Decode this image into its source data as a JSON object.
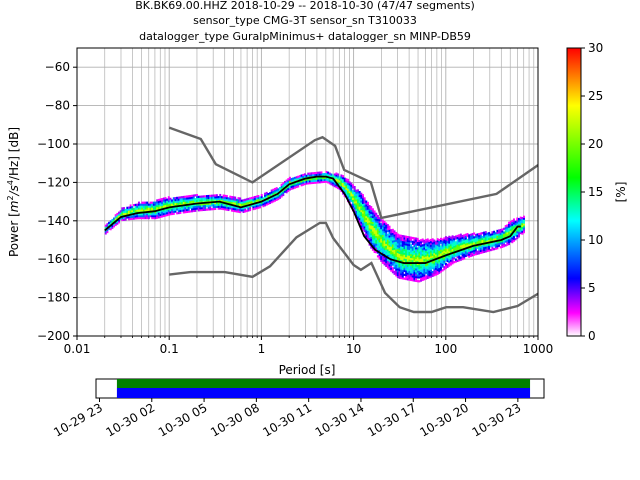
{
  "title_lines": [
    "BK.BK69.00.HHZ   2018-10-29 -- 2018-10-30  (47/47 segments)",
    "sensor_type CMG-3T sensor_sn T310033",
    "datalogger_type GuralpMinimus+ datalogger_sn MINP-DB59"
  ],
  "chart_data": {
    "type": "heatmap",
    "xlabel": "Period [s]",
    "ylabel_parts": {
      "prefix": "Power [",
      "unit_m": "m",
      "exp2": "2",
      "unit_s": "/s",
      "exp4": "4",
      "suffix": "/Hz] [dB]"
    },
    "xscale": "log",
    "xlim": [
      0.01,
      1000
    ],
    "ylim": [
      -200,
      -50
    ],
    "x_ticks": [
      0.01,
      0.1,
      1,
      10,
      100,
      1000
    ],
    "x_tick_labels": [
      "0.01",
      "0.1",
      "1",
      "10",
      "100",
      "1000"
    ],
    "y_ticks": [
      -200,
      -180,
      -160,
      -140,
      -120,
      -100,
      -80,
      -60
    ],
    "y_tick_labels": [
      "−200",
      "−180",
      "−160",
      "−140",
      "−120",
      "−100",
      "−80",
      "−60"
    ],
    "grid": true,
    "colorbar": {
      "label": "[%]",
      "range": [
        0,
        30
      ],
      "ticks": [
        0,
        5,
        10,
        15,
        20,
        25,
        30
      ],
      "tick_labels": [
        "0",
        "5",
        "10",
        "15",
        "20",
        "25",
        "30"
      ],
      "colors": [
        "#ffffff",
        "#ff00ff",
        "#0000ff",
        "#00ffff",
        "#00ff00",
        "#ffff00",
        "#ff0000"
      ]
    },
    "noise_model_high": [
      [
        0.1,
        -91.5
      ],
      [
        0.22,
        -97.4
      ],
      [
        0.32,
        -110.5
      ],
      [
        0.8,
        -120
      ],
      [
        3.8,
        -98
      ],
      [
        4.6,
        -96.5
      ],
      [
        6.3,
        -101
      ],
      [
        7.9,
        -113.5
      ],
      [
        15.4,
        -120
      ],
      [
        20,
        -138.5
      ],
      [
        354.8,
        -126
      ],
      [
        1000,
        -111
      ]
    ],
    "noise_model_low": [
      [
        0.1,
        -168
      ],
      [
        0.17,
        -166.7
      ],
      [
        0.4,
        -166.7
      ],
      [
        0.8,
        -169.2
      ],
      [
        1.24,
        -163.7
      ],
      [
        2.4,
        -148.6
      ],
      [
        4.3,
        -141.1
      ],
      [
        5.0,
        -141.1
      ],
      [
        6.0,
        -149
      ],
      [
        10,
        -163
      ],
      [
        12,
        -165.5
      ],
      [
        15.6,
        -162
      ],
      [
        21.9,
        -177.5
      ],
      [
        31.6,
        -185
      ],
      [
        45,
        -187.5
      ],
      [
        70,
        -187.5
      ],
      [
        101,
        -185
      ],
      [
        154,
        -185
      ],
      [
        328,
        -187.5
      ],
      [
        600,
        -184.4
      ],
      [
        1000,
        -178
      ]
    ],
    "median": [
      [
        0.02,
        -145
      ],
      [
        0.03,
        -138
      ],
      [
        0.045,
        -136
      ],
      [
        0.07,
        -135
      ],
      [
        0.1,
        -133
      ],
      [
        0.2,
        -131
      ],
      [
        0.35,
        -130
      ],
      [
        0.6,
        -133
      ],
      [
        1,
        -130
      ],
      [
        1.5,
        -126
      ],
      [
        2,
        -121
      ],
      [
        3,
        -118
      ],
      [
        4,
        -117
      ],
      [
        5,
        -117
      ],
      [
        6,
        -118
      ],
      [
        8,
        -126
      ],
      [
        10,
        -135
      ],
      [
        13,
        -148
      ],
      [
        17,
        -155
      ],
      [
        25,
        -160
      ],
      [
        35,
        -162
      ],
      [
        60,
        -162
      ],
      [
        100,
        -158
      ],
      [
        200,
        -153
      ],
      [
        400,
        -150
      ],
      [
        500,
        -148
      ],
      [
        600,
        -143
      ],
      [
        650,
        -143
      ]
    ],
    "cloud": [
      [
        0.02,
        -147,
        -143
      ],
      [
        0.025,
        -143,
        -138
      ],
      [
        0.03,
        -140,
        -134
      ],
      [
        0.045,
        -139,
        -131
      ],
      [
        0.07,
        -139,
        -130
      ],
      [
        0.1,
        -137,
        -128
      ],
      [
        0.2,
        -135,
        -127
      ],
      [
        0.35,
        -134,
        -127
      ],
      [
        0.6,
        -136,
        -129
      ],
      [
        1,
        -133,
        -127
      ],
      [
        1.5,
        -129,
        -123
      ],
      [
        2,
        -124,
        -118
      ],
      [
        3,
        -121,
        -116
      ],
      [
        5,
        -120,
        -115
      ],
      [
        7,
        -124,
        -116
      ],
      [
        9,
        -132,
        -120
      ],
      [
        12,
        -145,
        -126
      ],
      [
        15,
        -154,
        -133
      ],
      [
        20,
        -162,
        -140
      ],
      [
        30,
        -170,
        -148
      ],
      [
        50,
        -172,
        -150
      ],
      [
        80,
        -168,
        -150
      ],
      [
        120,
        -162,
        -148
      ],
      [
        200,
        -158,
        -147
      ],
      [
        400,
        -154,
        -145
      ],
      [
        500,
        -152,
        -140
      ],
      [
        700,
        -146,
        -138
      ]
    ],
    "time_axis": {
      "tick_labels": [
        "10-29 23",
        "10-30 02",
        "10-30 05",
        "10-30 08",
        "10-30 11",
        "10-30 14",
        "10-30 17",
        "10-30 20",
        "10-30 23"
      ],
      "tick_hours": [
        23,
        26,
        29,
        32,
        35,
        38,
        41,
        44,
        47
      ],
      "xlim_hours": [
        22.8,
        48.5
      ],
      "coverage_hours": [
        24,
        47.7
      ],
      "colors": [
        "#008000",
        "#0000ff"
      ]
    }
  }
}
